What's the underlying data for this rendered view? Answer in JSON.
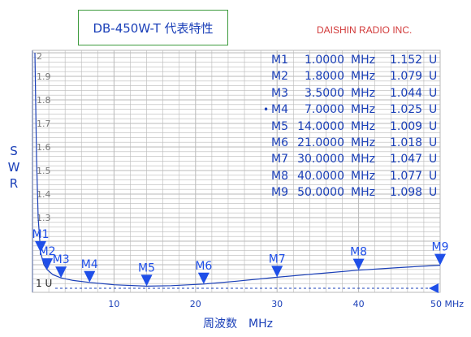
{
  "title": "DB-450W-T 代表特性",
  "company": "DAISHIN RADIO INC.",
  "ylabel_chars": [
    "S",
    "W",
    "R"
  ],
  "xlabel": "周波数　MHz",
  "active_marker_symbol": "•",
  "colors": {
    "ink": "#1a3fb8",
    "marker": "#1f4fe8",
    "grid": "#b9b9b9",
    "axis": "#1a3fb8",
    "title_border": "#3c9a3c",
    "company": "#d23a3a"
  },
  "markers": [
    {
      "name": "M1",
      "freq": "1.0000",
      "unit": "MHz",
      "swr": "1.152",
      "swr_unit": "U",
      "active": false
    },
    {
      "name": "M2",
      "freq": "1.8000",
      "unit": "MHz",
      "swr": "1.079",
      "swr_unit": "U",
      "active": false
    },
    {
      "name": "M3",
      "freq": "3.5000",
      "unit": "MHz",
      "swr": "1.044",
      "swr_unit": "U",
      "active": false
    },
    {
      "name": "M4",
      "freq": "7.0000",
      "unit": "MHz",
      "swr": "1.025",
      "swr_unit": "U",
      "active": true
    },
    {
      "name": "M5",
      "freq": "14.0000",
      "unit": "MHz",
      "swr": "1.009",
      "swr_unit": "U",
      "active": false
    },
    {
      "name": "M6",
      "freq": "21.0000",
      "unit": "MHz",
      "swr": "1.018",
      "swr_unit": "U",
      "active": false
    },
    {
      "name": "M7",
      "freq": "30.0000",
      "unit": "MHz",
      "swr": "1.047",
      "swr_unit": "U",
      "active": false
    },
    {
      "name": "M8",
      "freq": "40.0000",
      "unit": "MHz",
      "swr": "1.077",
      "swr_unit": "U",
      "active": false
    },
    {
      "name": "M9",
      "freq": "50.0000",
      "unit": "MHz",
      "swr": "1.098",
      "swr_unit": "U",
      "active": false
    }
  ],
  "chart_data": {
    "type": "line",
    "title": "DB-450W-T 代表特性",
    "xlabel": "周波数　MHz",
    "ylabel": "SWR",
    "xlim": [
      0,
      50
    ],
    "ylim": [
      1,
      2
    ],
    "grid": true,
    "x_ticks": [
      {
        "value": 10,
        "label": "10"
      },
      {
        "value": 20,
        "label": "20"
      },
      {
        "value": 30,
        "label": "30"
      },
      {
        "value": 40,
        "label": "40"
      },
      {
        "value": 50,
        "label": "50 MHz"
      }
    ],
    "y_ticks": [
      {
        "value": 1,
        "label": "1 U"
      },
      {
        "value": 1.3,
        "label": "1.3"
      },
      {
        "value": 1.4,
        "label": "1.4"
      },
      {
        "value": 1.5,
        "label": "1.5"
      },
      {
        "value": 1.6,
        "label": "1.6"
      },
      {
        "value": 1.7,
        "label": "1.7"
      },
      {
        "value": 1.8,
        "label": "1.8"
      },
      {
        "value": 1.9,
        "label": "1.9"
      },
      {
        "value": 2,
        "label": "2"
      }
    ],
    "series": [
      {
        "x": [
          0.3,
          0.5,
          0.7,
          1.0,
          1.4,
          1.8,
          2.5,
          3.5,
          5,
          7,
          10,
          14,
          17,
          21,
          25,
          30,
          35,
          40,
          45,
          50
        ],
        "y": [
          2.0,
          1.55,
          1.3,
          1.152,
          1.1,
          1.079,
          1.058,
          1.044,
          1.033,
          1.025,
          1.015,
          1.009,
          1.011,
          1.018,
          1.03,
          1.047,
          1.062,
          1.077,
          1.088,
          1.098
        ]
      }
    ],
    "markers": [
      {
        "label": "M1",
        "x": 1.0,
        "y": 1.152
      },
      {
        "label": "M2",
        "x": 1.8,
        "y": 1.079
      },
      {
        "label": "M3",
        "x": 3.5,
        "y": 1.044
      },
      {
        "label": "M4",
        "x": 7.0,
        "y": 1.025
      },
      {
        "label": "M5",
        "x": 14.0,
        "y": 1.009
      },
      {
        "label": "M6",
        "x": 21.0,
        "y": 1.018
      },
      {
        "label": "M7",
        "x": 30.0,
        "y": 1.047
      },
      {
        "label": "M8",
        "x": 40.0,
        "y": 1.077
      },
      {
        "label": "M9",
        "x": 50.0,
        "y": 1.098
      }
    ],
    "reference_line": {
      "y": 1,
      "style": "dashed"
    }
  }
}
